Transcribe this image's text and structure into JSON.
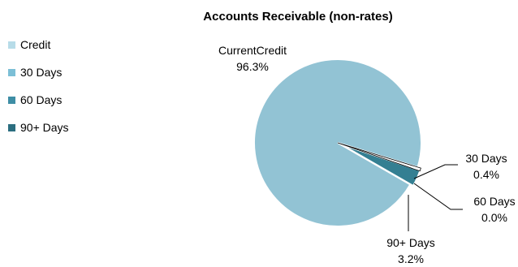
{
  "chart_data": {
    "type": "pie",
    "title": "Accounts Receivable (non-rates)",
    "legend": {
      "placement": "left",
      "entries": [
        {
          "label": "Credit",
          "color": "#b7dce8"
        },
        {
          "label": "30 Days",
          "color": "#7cbfd6"
        },
        {
          "label": "60 Days",
          "color": "#3e8ea5"
        },
        {
          "label": "90+ Days",
          "color": "#2b6e80"
        }
      ]
    },
    "slices": [
      {
        "name": "CurrentCredit",
        "value": 96.3,
        "label": "96.3%",
        "color": "#92c3d4"
      },
      {
        "name": "30 Days",
        "value": 0.4,
        "label": "0.4%",
        "color": "#ffffff"
      },
      {
        "name": "60 Days",
        "value": 0.0,
        "label": "0.0%",
        "color": "#ffffff"
      },
      {
        "name": "90+ Days",
        "value": 3.2,
        "label": "3.2%",
        "color": "#347f92"
      }
    ]
  }
}
